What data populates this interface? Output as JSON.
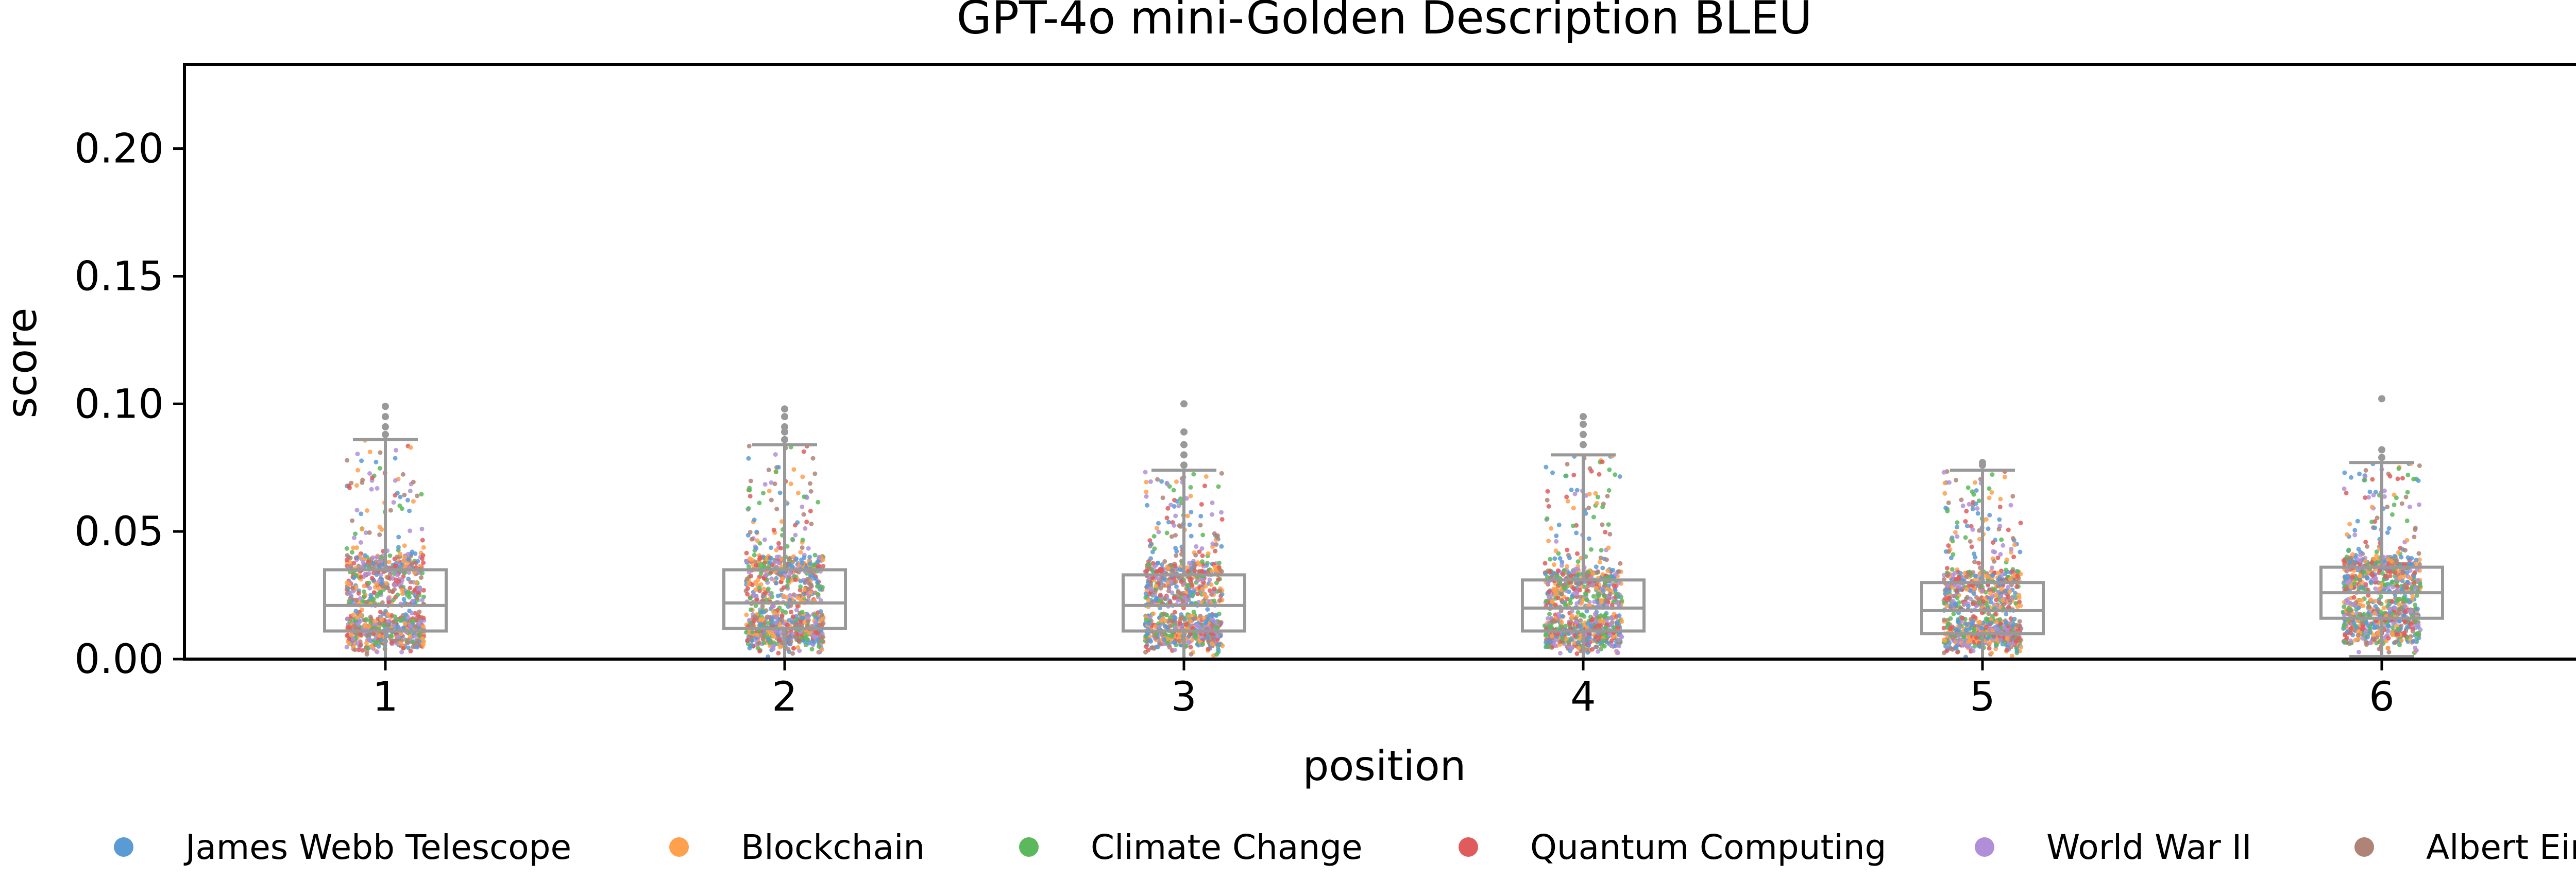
{
  "chart_data": {
    "type": "box",
    "overlay": "strip",
    "title": "GPT-4o mini-Golden Description BLEU",
    "xlabel": "position",
    "ylabel": "score",
    "ylim": [
      0,
      0.233
    ],
    "yticks": [
      "0.00",
      "0.05",
      "0.10",
      "0.15",
      "0.20"
    ],
    "categories": [
      "1",
      "2",
      "3",
      "4",
      "5",
      "6"
    ],
    "boxes": [
      {
        "position": "1",
        "q1": 0.011,
        "median": 0.021,
        "q3": 0.035,
        "whisker_low": 0.0,
        "whisker_high": 0.086,
        "outliers": [
          0.088,
          0.091,
          0.095,
          0.099
        ]
      },
      {
        "position": "2",
        "q1": 0.012,
        "median": 0.022,
        "q3": 0.035,
        "whisker_low": 0.0,
        "whisker_high": 0.084,
        "outliers": [
          0.086,
          0.089,
          0.091,
          0.095,
          0.098
        ]
      },
      {
        "position": "3",
        "q1": 0.011,
        "median": 0.021,
        "q3": 0.033,
        "whisker_low": 0.0,
        "whisker_high": 0.074,
        "outliers": [
          0.076,
          0.08,
          0.084,
          0.089,
          0.1
        ]
      },
      {
        "position": "4",
        "q1": 0.011,
        "median": 0.02,
        "q3": 0.031,
        "whisker_low": 0.0,
        "whisker_high": 0.08,
        "outliers": [
          0.084,
          0.088,
          0.092,
          0.095
        ]
      },
      {
        "position": "5",
        "q1": 0.01,
        "median": 0.019,
        "q3": 0.03,
        "whisker_low": 0.0,
        "whisker_high": 0.074,
        "outliers": [
          0.076,
          0.077
        ]
      },
      {
        "position": "6",
        "q1": 0.016,
        "median": 0.026,
        "q3": 0.036,
        "whisker_low": 0.001,
        "whisker_high": 0.077,
        "outliers": [
          0.079,
          0.082,
          0.102
        ]
      }
    ],
    "series": [
      {
        "name": "James Webb Telescope",
        "color": "#5b9bd5"
      },
      {
        "name": "Blockchain",
        "color": "#ffa04d"
      },
      {
        "name": "Climate Change",
        "color": "#5cb85c"
      },
      {
        "name": "Quantum Computing",
        "color": "#e05c5c"
      },
      {
        "name": "World War II",
        "color": "#b18fd8"
      },
      {
        "name": "Albert Einstein",
        "color": "#b08377"
      }
    ],
    "grid": false,
    "legend_position": "bottom"
  }
}
